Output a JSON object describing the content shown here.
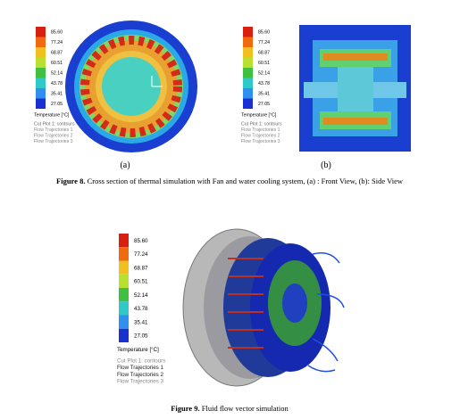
{
  "figure8": {
    "panels": [
      {
        "legend": {
          "values": [
            "85.60",
            "77.24",
            "68.87",
            "60.51",
            "52.14",
            "43.78",
            "35.41",
            "27.05"
          ],
          "unit_label": "Temperature [°C]",
          "entries": [
            "Cut Plot 1: contours",
            "Flow Trajectories 1",
            "Flow Trajectories 2",
            "Flow Trajectories 3"
          ]
        },
        "label": "(a)"
      },
      {
        "legend": {
          "values": [
            "85.60",
            "77.24",
            "68.87",
            "60.51",
            "52.14",
            "43.78",
            "35.41",
            "27.05"
          ],
          "unit_label": "Temperature [°C]",
          "entries": [
            "Cut Plot 1: contours",
            "Flow Trajectories 1",
            "Flow Trajectories 2",
            "Flow Trajectories 3"
          ]
        },
        "label": "(b)"
      }
    ],
    "caption_label": "Figure 8.",
    "caption": " Cross section of thermal simulation with Fan and water cooling system, (a) : Front View, (b): Side View"
  },
  "figure9": {
    "legend": {
      "values": [
        "85.60",
        "77.24",
        "68.87",
        "60.51",
        "52.14",
        "43.78",
        "35.41",
        "27.05"
      ],
      "unit_label": "Temperature [°C]",
      "entries": [
        "Cut Plot 1: contours",
        "Flow Trajectories 1",
        "Flow Trajectories 2",
        "Flow Trajectories 3"
      ]
    },
    "caption_label": "Figure 9.",
    "caption": " Fluid flow vector simulation"
  }
}
